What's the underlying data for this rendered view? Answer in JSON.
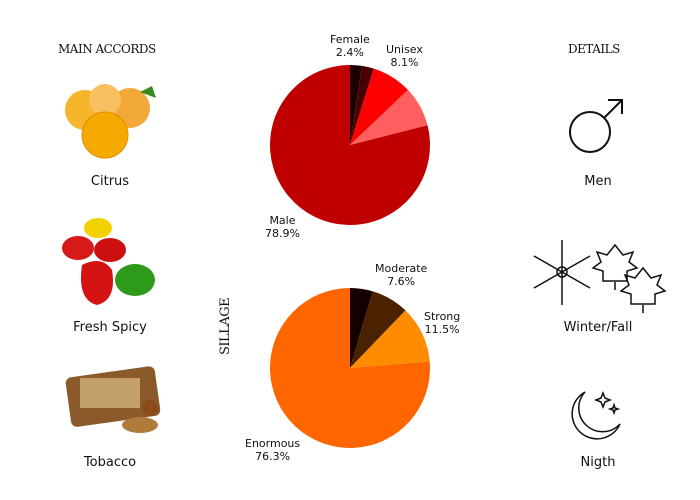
{
  "accords": {
    "title": "MAIN ACCORDS",
    "items": [
      {
        "label": "Citrus",
        "icon": "citrus-fruit-icon"
      },
      {
        "label": "Fresh Spicy",
        "icon": "peppers-icon"
      },
      {
        "label": "Tobacco",
        "icon": "tobacco-icon"
      }
    ]
  },
  "details": {
    "title": "DETAILS",
    "items": [
      {
        "label": "Men",
        "icon": "male-symbol-icon"
      },
      {
        "label": "Winter/Fall",
        "icon": "snowflake-leaves-icon"
      },
      {
        "label": "Nigth",
        "icon": "moon-stars-icon"
      }
    ]
  },
  "sillage_label": "SILLAGE",
  "chart_data": [
    {
      "type": "pie",
      "slices": [
        {
          "name": "Female",
          "value": 2.4,
          "color": "#1a0000"
        },
        {
          "name": "",
          "value": 2.4,
          "color": "#4a0000"
        },
        {
          "name": "",
          "value": 8.1,
          "color": "#ff0000"
        },
        {
          "name": "Unisex",
          "value": 8.1,
          "color": "#ff5f5f"
        },
        {
          "name": "Male",
          "value": 78.9,
          "color": "#c00000"
        }
      ],
      "labels": [
        {
          "name": "Female",
          "pct": "2.4%"
        },
        {
          "name": "Unisex",
          "pct": "8.1%"
        },
        {
          "name": "Male",
          "pct": "78.9%"
        }
      ]
    },
    {
      "type": "pie",
      "slices": [
        {
          "name": "",
          "value": 4.6,
          "color": "#150000"
        },
        {
          "name": "Moderate",
          "value": 7.6,
          "color": "#4a2200"
        },
        {
          "name": "Strong",
          "value": 11.5,
          "color": "#ff8c00"
        },
        {
          "name": "Enormous",
          "value": 76.3,
          "color": "#ff6600"
        }
      ],
      "labels": [
        {
          "name": "Moderate",
          "pct": "7.6%"
        },
        {
          "name": "Strong",
          "pct": "11.5%"
        },
        {
          "name": "Enormous",
          "pct": "76.3%"
        }
      ]
    }
  ]
}
